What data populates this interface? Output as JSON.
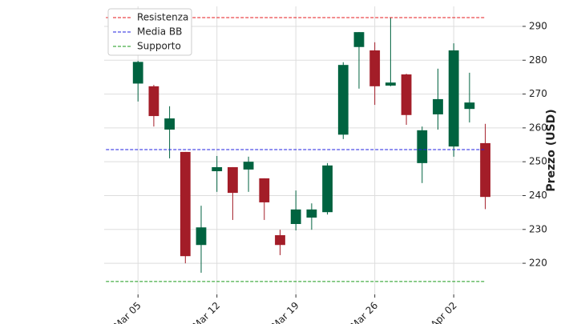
{
  "chart_data": {
    "type": "candlestick",
    "y_label": "Prezzo (USD)",
    "x": [
      5,
      6.4,
      7.8,
      9.2,
      10.6,
      12,
      13.4,
      14.8,
      16.2,
      17.6,
      19,
      20.4,
      21.8,
      23.2,
      24.6,
      26,
      27.4,
      28.8,
      30.2,
      31.6,
      33,
      34.4,
      35.8
    ],
    "open": [
      273.1,
      272.3,
      259.5,
      252.9,
      225.4,
      247.2,
      248.4,
      247.7,
      245.1,
      228.3,
      231.6,
      233.5,
      235.1,
      258.0,
      283.9,
      282.9,
      272.5,
      275.8,
      249.6,
      264.0,
      254.5,
      265.6,
      255.5
    ],
    "high": [
      279.8,
      272.7,
      266.4,
      252.9,
      237.0,
      251.7,
      248.4,
      251.5,
      245.1,
      229.9,
      241.5,
      237.7,
      249.6,
      279.4,
      288.3,
      285.3,
      292.6,
      276.0,
      260.4,
      277.5,
      285.0,
      276.3,
      261.2
    ],
    "low": [
      267.8,
      260.4,
      251.0,
      220.0,
      217.2,
      241.1,
      232.8,
      241.1,
      232.8,
      222.4,
      229.7,
      229.9,
      234.4,
      256.7,
      271.6,
      266.8,
      272.3,
      260.9,
      243.7,
      259.5,
      251.5,
      261.6,
      236.0
    ],
    "close": [
      279.5,
      263.5,
      262.8,
      222.1,
      230.6,
      248.4,
      240.8,
      250.0,
      238.0,
      225.4,
      235.9,
      235.9,
      248.9,
      278.6,
      288.3,
      272.3,
      273.4,
      263.8,
      259.3,
      268.5,
      282.9,
      267.5,
      239.6
    ],
    "up_color": "#006340",
    "down_color": "#a31d28",
    "lines": [
      {
        "name": "Resistenza",
        "color": "#e41a1c",
        "value": 292.6
      },
      {
        "name": "Media BB",
        "color": "#1f1fe0",
        "value": 253.6
      },
      {
        "name": "Supporto",
        "color": "#1a9a1a",
        "value": 214.6
      }
    ],
    "xlim": [
      2,
      39.1
    ],
    "ylim": [
      210.8,
      295.9
    ],
    "xticks": [
      {
        "value": 5,
        "label": "Mar 05"
      },
      {
        "value": 12,
        "label": "Mar 12"
      },
      {
        "value": 19,
        "label": "Mar 19"
      },
      {
        "value": 26,
        "label": "Mar 26"
      },
      {
        "value": 33,
        "label": "Apr 02"
      }
    ],
    "yticks": [
      220,
      230,
      240,
      250,
      260,
      270,
      280,
      290
    ],
    "grid": true,
    "legend": "upper left"
  }
}
